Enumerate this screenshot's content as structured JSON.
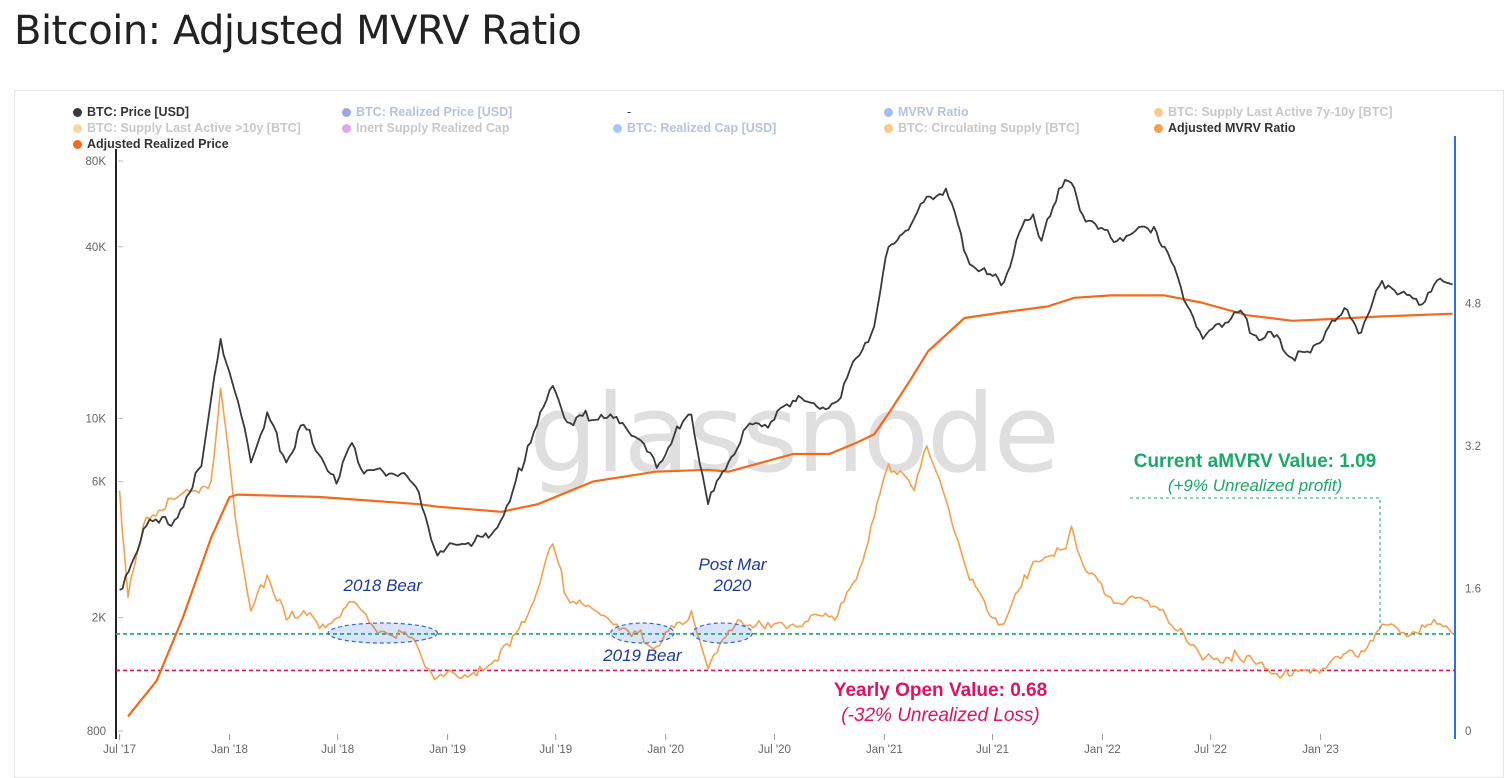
{
  "title": "Bitcoin: Adjusted MVRV Ratio",
  "watermark": "glassnode",
  "legend": [
    {
      "label": "BTC: Price [USD]",
      "color": "#3a3a3a",
      "active": true
    },
    {
      "label": "BTC: Realized Price [USD]",
      "color": "#1f3fb5",
      "active": false
    },
    {
      "label": "-",
      "color": "",
      "active": true
    },
    {
      "label": "MVRV Ratio",
      "color": "#2f6fe0",
      "active": false
    },
    {
      "label": "BTC: Supply Last Active 7y-10y [BTC]",
      "color": "#f08a00",
      "active": false
    },
    {
      "label": "BTC: Supply Last Active >10y [BTC]",
      "color": "#f5a23a",
      "active": false
    },
    {
      "label": "Inert Supply Realized Cap",
      "color": "#c531d6",
      "active": false
    },
    {
      "label": "BTC: Realized Cap [USD]",
      "color": "#3f86e6",
      "active": false
    },
    {
      "label": "BTC: Circulating Supply [BTC]",
      "color": "#f08a00",
      "active": false
    },
    {
      "label": "Adjusted MVRV Ratio",
      "color": "#f5a04f",
      "active": true
    },
    {
      "label": "Adjusted Realized Price",
      "color": "#f26a1b",
      "active": true
    }
  ],
  "annotations": {
    "bear_2018": "2018 Bear",
    "bear_2019": "2019 Bear",
    "post_mar_line1": "Post Mar",
    "post_mar_line2": "2020",
    "current_title": "Current aMVRV Value: 1.09",
    "current_sub": "(+9% Unrealized profit)",
    "yearly_title": "Yearly Open Value: 0.68",
    "yearly_sub": "(-32% Unrealized Loss)"
  },
  "colors": {
    "price": "#3a3a3a",
    "amvrv": "#f5a04f",
    "adj_realized": "#f26a1b",
    "green_ref": "#1aa86b",
    "red_ref": "#e0125d",
    "annotation_blue": "#1d3a9e",
    "right_axis": "#2f6fe0"
  },
  "chart_data": {
    "type": "line",
    "title": "Bitcoin: Adjusted MVRV Ratio",
    "x_ticks": [
      "Jul '17",
      "Jan '18",
      "Jul '18",
      "Jan '19",
      "Jul '19",
      "Jan '20",
      "Jul '20",
      "Jan '21",
      "Jul '21",
      "Jan '22",
      "Jul '22",
      "Jan '23"
    ],
    "y_left": {
      "scale": "log",
      "ticks": [
        "800",
        "2K",
        "6K",
        "10K",
        "40K",
        "80K"
      ],
      "tick_values": [
        800,
        2000,
        6000,
        10000,
        40000,
        80000
      ],
      "range": [
        800,
        80000
      ]
    },
    "y_right": {
      "scale": "linear",
      "ticks": [
        "0",
        "1.6",
        "3.2",
        "4.8"
      ],
      "tick_values": [
        0,
        1.6,
        3.2,
        4.8
      ],
      "range": [
        0,
        6.4
      ]
    },
    "reference_lines": [
      {
        "name": "Current aMVRV Value",
        "y": 1.09,
        "axis": "right"
      },
      {
        "name": "Yearly Open Value",
        "y": 0.68,
        "axis": "right"
      }
    ],
    "series": [
      {
        "name": "BTC: Price [USD]",
        "axis": "left",
        "x": [
          "2017-07-01",
          "2017-08-15",
          "2017-10-01",
          "2017-11-15",
          "2017-12-17",
          "2018-01-15",
          "2018-02-06",
          "2018-03-05",
          "2018-04-06",
          "2018-05-05",
          "2018-06-29",
          "2018-07-25",
          "2018-08-14",
          "2018-09-15",
          "2018-10-15",
          "2018-11-14",
          "2018-12-15",
          "2019-01-15",
          "2019-02-15",
          "2019-03-15",
          "2019-04-15",
          "2019-05-15",
          "2019-06-26",
          "2019-07-20",
          "2019-08-15",
          "2019-09-15",
          "2019-10-26",
          "2019-11-15",
          "2019-12-17",
          "2020-01-15",
          "2020-02-13",
          "2020-03-12",
          "2020-04-15",
          "2020-05-15",
          "2020-06-15",
          "2020-07-27",
          "2020-08-15",
          "2020-09-15",
          "2020-10-15",
          "2020-11-15",
          "2020-12-15",
          "2021-01-08",
          "2021-02-15",
          "2021-03-13",
          "2021-04-14",
          "2021-05-19",
          "2021-06-22",
          "2021-07-20",
          "2021-08-15",
          "2021-09-07",
          "2021-09-21",
          "2021-10-20",
          "2021-11-10",
          "2021-12-04",
          "2022-01-15",
          "2022-02-15",
          "2022-03-28",
          "2022-04-15",
          "2022-05-12",
          "2022-06-18",
          "2022-07-15",
          "2022-08-15",
          "2022-09-15",
          "2022-10-15",
          "2022-11-09",
          "2022-12-15",
          "2023-01-15",
          "2023-02-15",
          "2023-03-10",
          "2023-04-14",
          "2023-05-15",
          "2023-06-15",
          "2023-07-15",
          "2023-08-10"
        ],
        "values": [
          2500,
          4200,
          4400,
          6800,
          19000,
          11500,
          7000,
          10500,
          7000,
          9500,
          5900,
          8200,
          6400,
          6500,
          6400,
          5500,
          3300,
          3600,
          3700,
          3900,
          5100,
          8000,
          13000,
          9700,
          10200,
          10300,
          9300,
          8500,
          6700,
          8700,
          10300,
          5000,
          7000,
          9300,
          9500,
          11000,
          11800,
          10800,
          11500,
          16300,
          21000,
          40000,
          48000,
          60000,
          64000,
          37000,
          32000,
          30000,
          45000,
          52000,
          42000,
          64000,
          67000,
          49000,
          43000,
          44000,
          47000,
          40000,
          29000,
          19000,
          21500,
          23500,
          19500,
          19300,
          16500,
          17000,
          21000,
          24000,
          20000,
          30400,
          27500,
          25000,
          30500,
          29500
        ]
      },
      {
        "name": "Adjusted Realized Price",
        "axis": "left",
        "x": [
          "2017-07-15",
          "2017-09-01",
          "2017-10-15",
          "2017-12-01",
          "2018-01-01",
          "2018-01-15",
          "2018-06-01",
          "2018-11-14",
          "2018-12-15",
          "2019-04-01",
          "2019-06-01",
          "2019-09-01",
          "2019-12-15",
          "2020-03-12",
          "2020-04-15",
          "2020-08-01",
          "2020-10-01",
          "2020-11-15",
          "2020-12-15",
          "2021-01-08",
          "2021-02-15",
          "2021-03-15",
          "2021-05-15",
          "2021-07-15",
          "2021-10-01",
          "2021-11-15",
          "2022-01-15",
          "2022-04-15",
          "2022-06-15",
          "2022-09-01",
          "2022-11-15",
          "2023-01-15",
          "2023-04-15",
          "2023-08-10"
        ],
        "values": [
          900,
          1200,
          2000,
          3800,
          5300,
          5400,
          5300,
          5000,
          4900,
          4700,
          5000,
          6000,
          6500,
          6600,
          6500,
          7500,
          7500,
          8200,
          8800,
          10400,
          13800,
          17200,
          22500,
          23500,
          24700,
          26500,
          27000,
          27000,
          25500,
          23000,
          22000,
          22300,
          22800,
          23300
        ]
      },
      {
        "name": "Adjusted MVRV Ratio",
        "axis": "right",
        "x": [
          "2017-07-01",
          "2017-07-15",
          "2017-08-15",
          "2017-10-01",
          "2017-12-01",
          "2017-12-17",
          "2018-01-15",
          "2018-02-06",
          "2018-03-05",
          "2018-04-06",
          "2018-05-05",
          "2018-06-01",
          "2018-07-25",
          "2018-09-01",
          "2018-11-01",
          "2018-11-20",
          "2018-12-15",
          "2019-03-01",
          "2019-04-15",
          "2019-05-15",
          "2019-06-26",
          "2019-07-20",
          "2019-09-15",
          "2019-10-26",
          "2019-11-15",
          "2019-12-17",
          "2020-02-13",
          "2020-03-12",
          "2020-05-01",
          "2020-06-15",
          "2020-08-01",
          "2020-10-15",
          "2020-11-15",
          "2020-12-15",
          "2021-01-08",
          "2021-02-20",
          "2021-03-13",
          "2021-04-14",
          "2021-05-19",
          "2021-06-22",
          "2021-07-20",
          "2021-09-07",
          "2021-11-01",
          "2021-11-10",
          "2021-12-04",
          "2022-01-15",
          "2022-03-28",
          "2022-05-12",
          "2022-06-18",
          "2022-08-15",
          "2022-09-15",
          "2022-11-09",
          "2022-12-15",
          "2023-01-15",
          "2023-03-10",
          "2023-04-14",
          "2023-05-15",
          "2023-07-15",
          "2023-08-10"
        ],
        "values": [
          2.7,
          1.5,
          2.4,
          2.6,
          2.8,
          3.85,
          2.2,
          1.35,
          1.75,
          1.25,
          1.35,
          1.15,
          1.45,
          1.15,
          1.05,
          0.8,
          0.6,
          0.68,
          0.95,
          1.3,
          2.1,
          1.5,
          1.3,
          1.15,
          1.1,
          0.95,
          1.35,
          0.7,
          1.25,
          1.15,
          1.2,
          1.3,
          1.7,
          2.4,
          3.0,
          2.7,
          3.2,
          2.6,
          1.8,
          1.35,
          1.2,
          1.9,
          2.05,
          2.3,
          1.8,
          1.5,
          1.4,
          1.15,
          0.8,
          0.85,
          0.75,
          0.62,
          0.65,
          0.75,
          0.9,
          1.2,
          1.1,
          1.2,
          1.09
        ]
      }
    ]
  }
}
